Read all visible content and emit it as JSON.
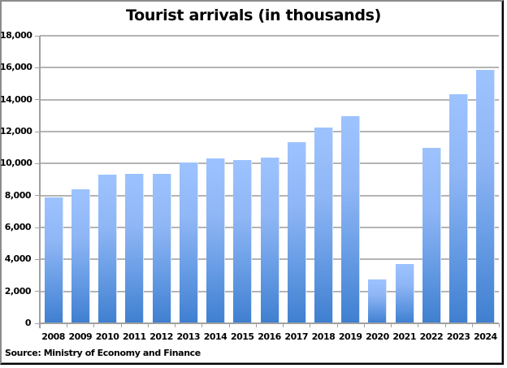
{
  "chart_data": {
    "type": "bar",
    "title": "Tourist arrivals (in thousands)",
    "xlabel": "",
    "ylabel": "",
    "categories": [
      "2008",
      "2009",
      "2010",
      "2011",
      "2012",
      "2013",
      "2014",
      "2015",
      "2016",
      "2017",
      "2018",
      "2019",
      "2020",
      "2021",
      "2022",
      "2023",
      "2024"
    ],
    "values": [
      7900,
      8370,
      9300,
      9350,
      9380,
      10050,
      10300,
      10200,
      10350,
      11350,
      12270,
      12980,
      2770,
      3720,
      10970,
      14360,
      15880
    ],
    "ylim": [
      0,
      18000
    ],
    "yticks": [
      0,
      2000,
      4000,
      6000,
      8000,
      10000,
      12000,
      14000,
      16000,
      18000
    ],
    "ytick_labels": [
      "0",
      "2,000",
      "4,000",
      "6,000",
      "8,000",
      "10,000",
      "12,000",
      "14,000",
      "16,000",
      "18,000"
    ],
    "grid": true,
    "legend": "none",
    "bar_color_top": "#9dc3ff",
    "bar_color_bottom": "#3f7fd0"
  },
  "source": "Source: Ministry of Economy and Finance"
}
